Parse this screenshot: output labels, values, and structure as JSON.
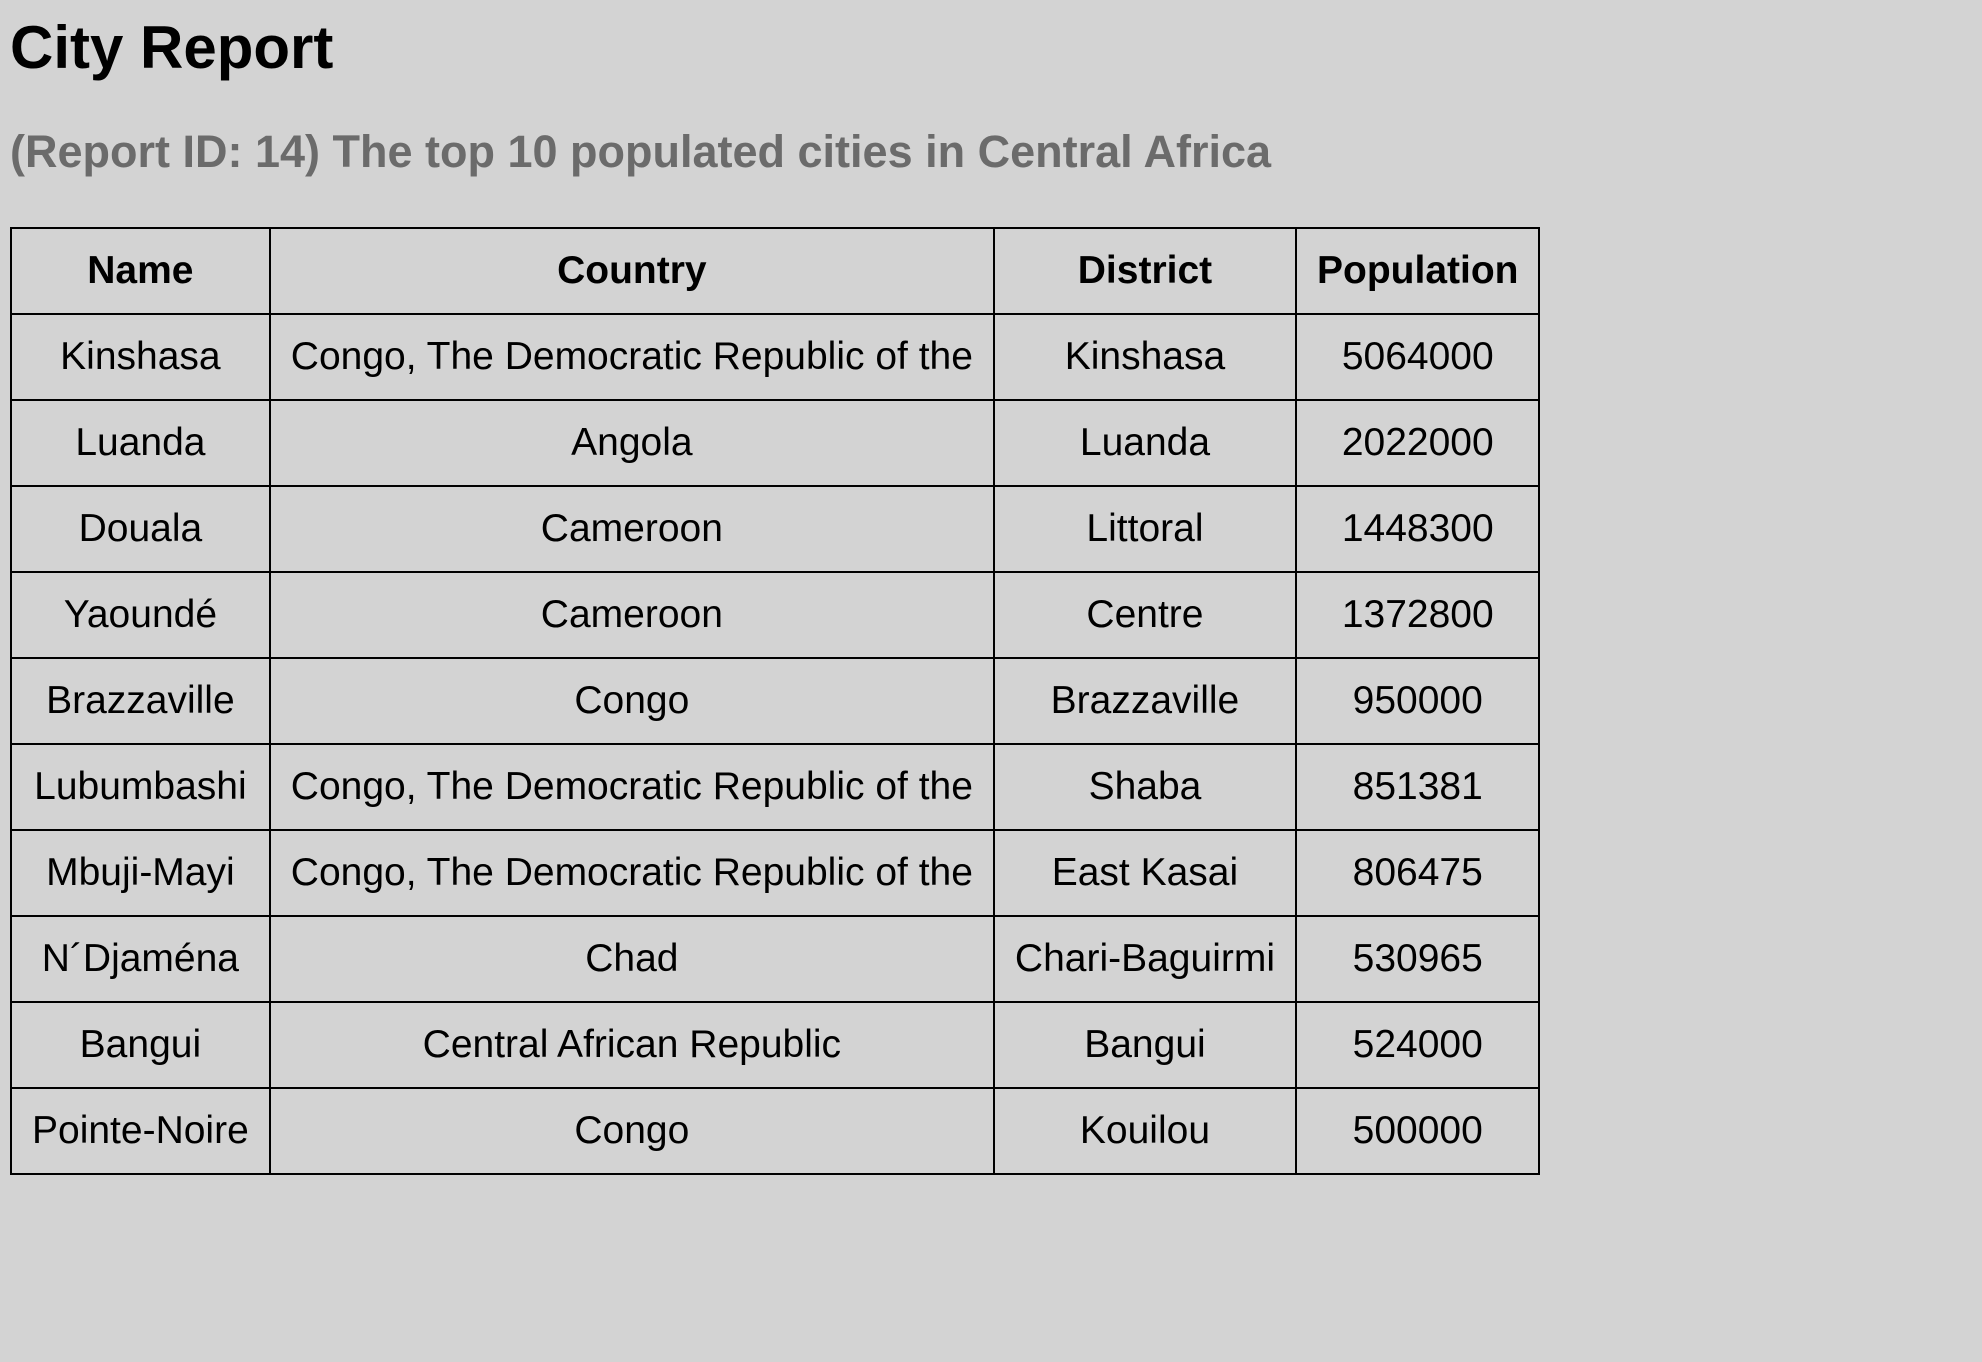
{
  "report": {
    "title": "City Report",
    "subtitle": "(Report ID: 14) The top 10 populated cities in Central Africa"
  },
  "table": {
    "headers": [
      "Name",
      "Country",
      "District",
      "Population"
    ],
    "rows": [
      [
        "Kinshasa",
        "Congo, The Democratic Republic of the",
        "Kinshasa",
        "5064000"
      ],
      [
        "Luanda",
        "Angola",
        "Luanda",
        "2022000"
      ],
      [
        "Douala",
        "Cameroon",
        "Littoral",
        "1448300"
      ],
      [
        "Yaoundé",
        "Cameroon",
        "Centre",
        "1372800"
      ],
      [
        "Brazzaville",
        "Congo",
        "Brazzaville",
        "950000"
      ],
      [
        "Lubumbashi",
        "Congo, The Democratic Republic of the",
        "Shaba",
        "851381"
      ],
      [
        "Mbuji-Mayi",
        "Congo, The Democratic Republic of the",
        "East Kasai",
        "806475"
      ],
      [
        "N´Djaména",
        "Chad",
        "Chari-Baguirmi",
        "530965"
      ],
      [
        "Bangui",
        "Central African Republic",
        "Bangui",
        "524000"
      ],
      [
        "Pointe-Noire",
        "Congo",
        "Kouilou",
        "500000"
      ]
    ]
  }
}
